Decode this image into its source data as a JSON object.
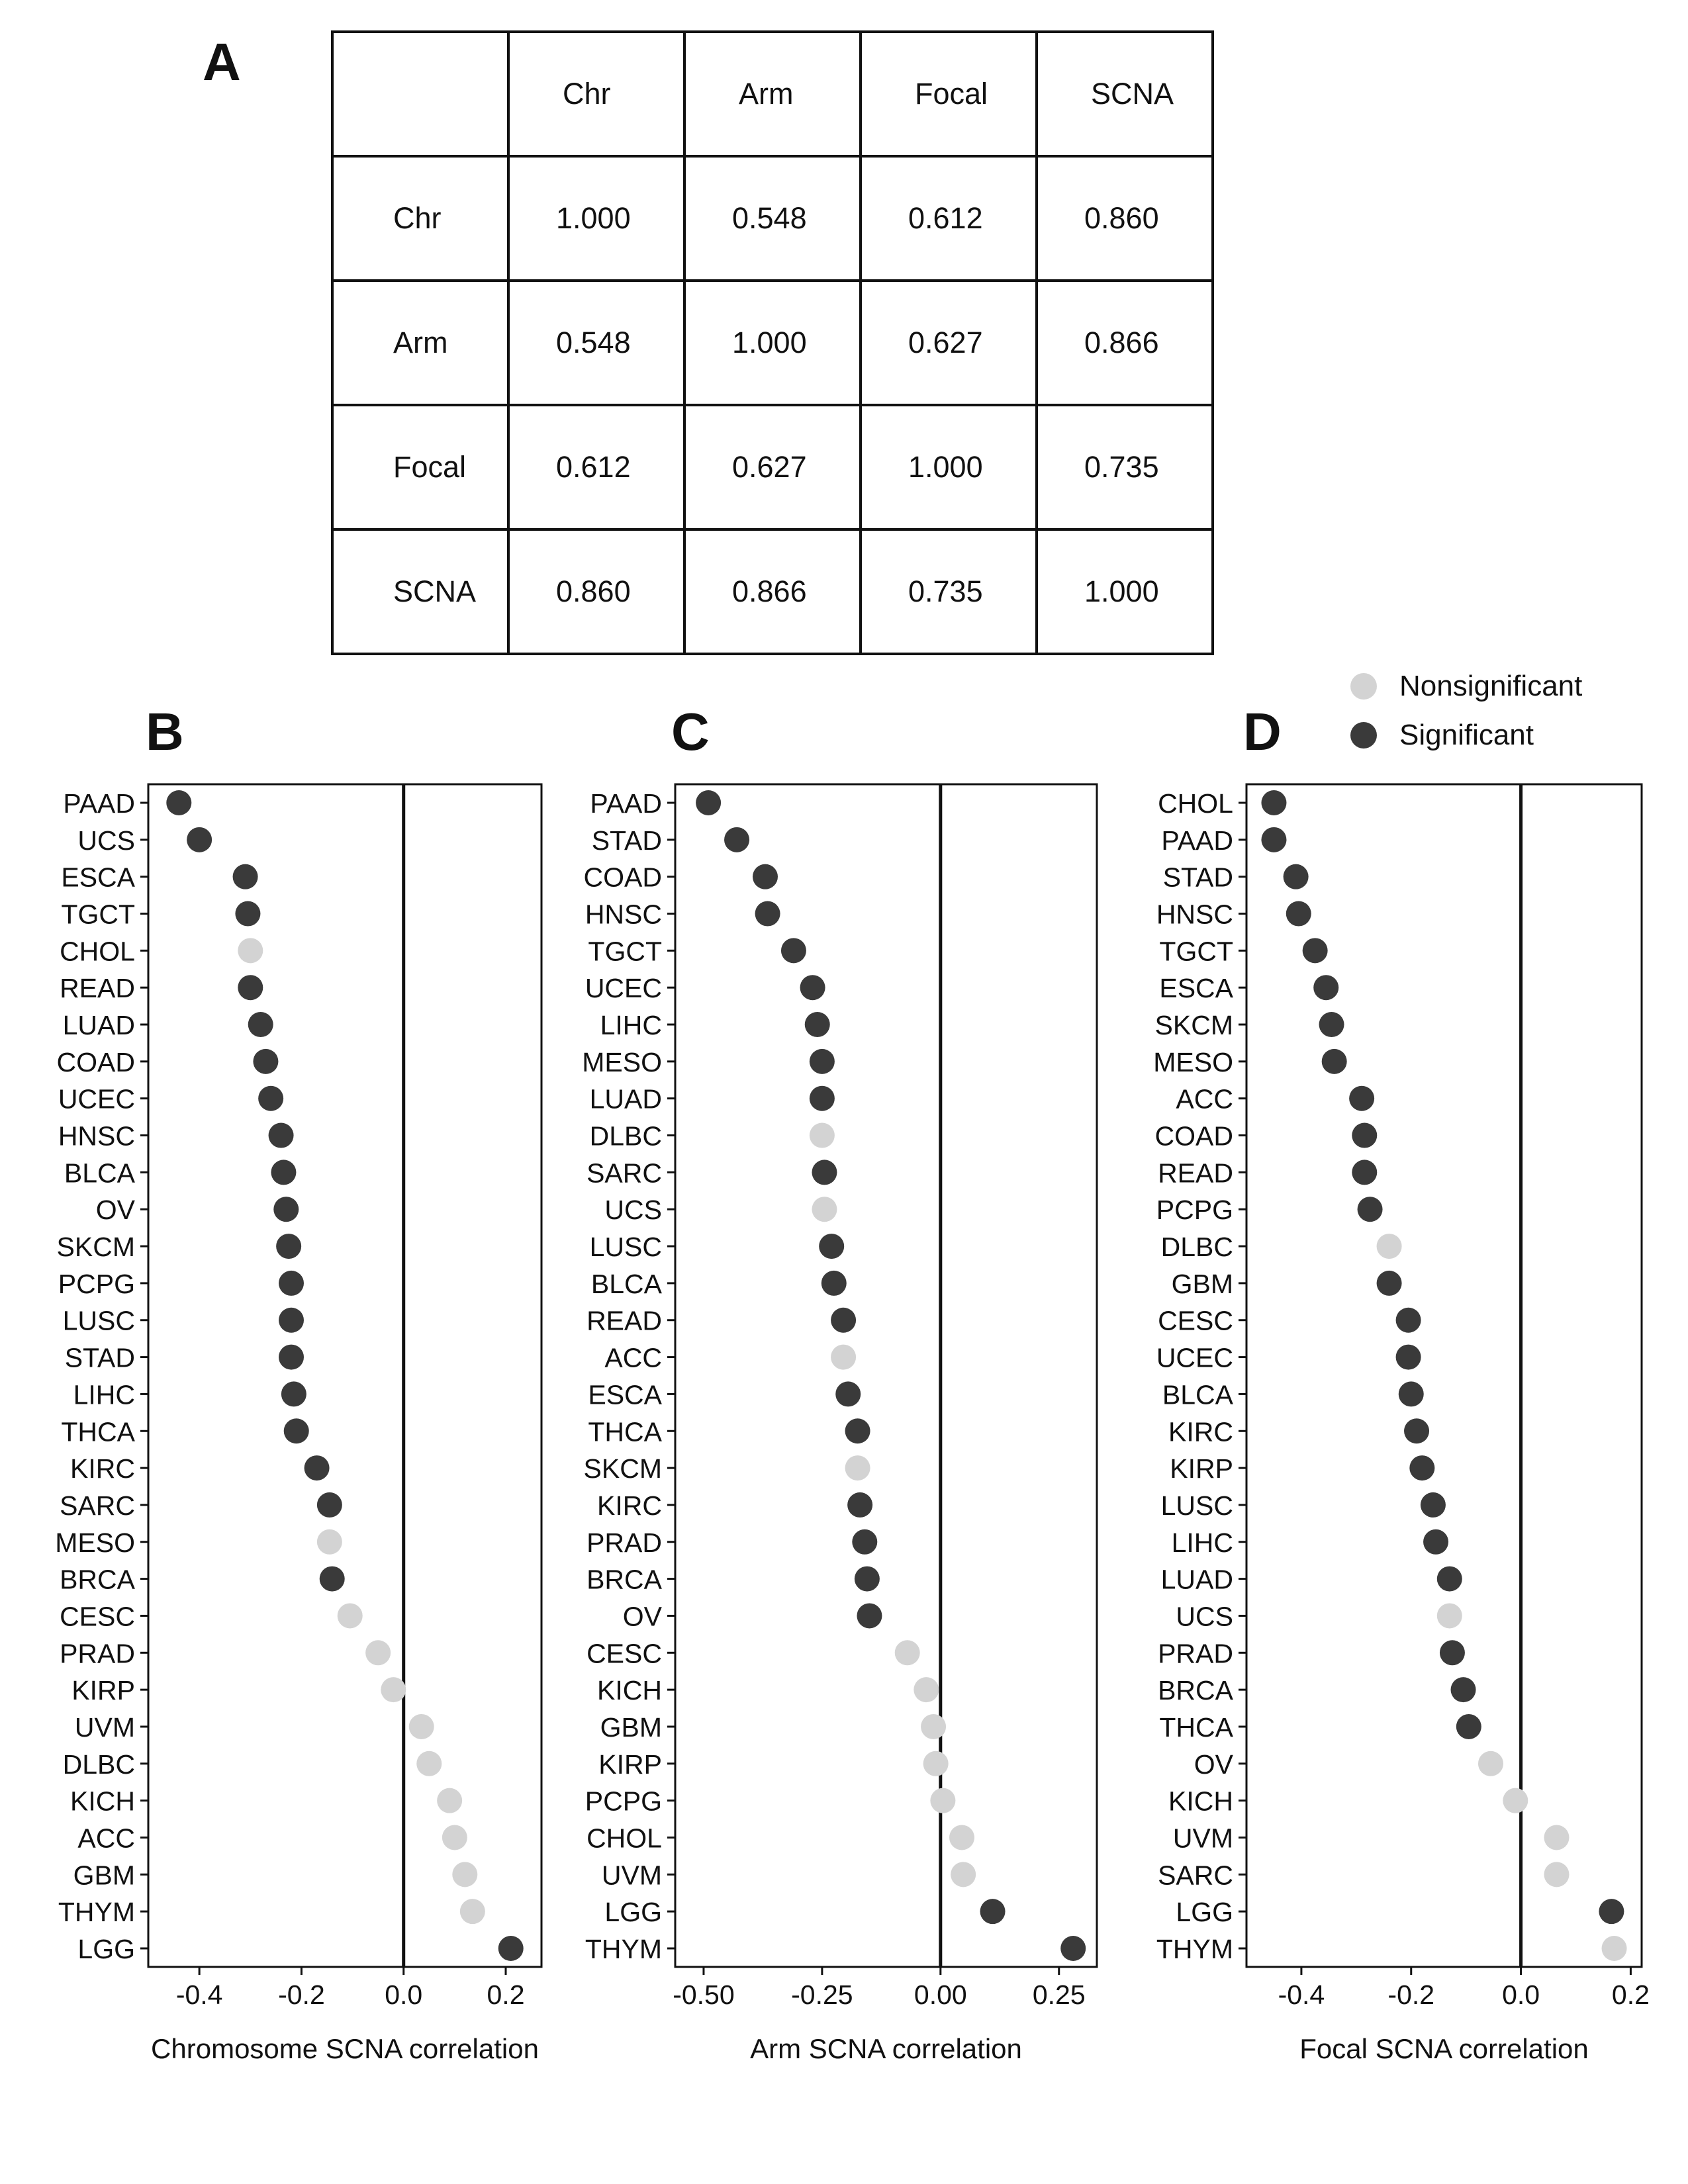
{
  "panels": {
    "a": "A",
    "b": "B",
    "c": "C",
    "d": "D"
  },
  "table": {
    "header": [
      "",
      "Chr",
      "Arm",
      "Focal",
      "SCNA"
    ],
    "rows": [
      [
        "Chr",
        "1.000",
        "0.548",
        "0.612",
        "0.860"
      ],
      [
        "Arm",
        "0.548",
        "1.000",
        "0.627",
        "0.866"
      ],
      [
        "Focal",
        "0.612",
        "0.627",
        "1.000",
        "0.735"
      ],
      [
        "SCNA",
        "0.860",
        "0.866",
        "0.735",
        "1.000"
      ]
    ]
  },
  "legend": {
    "nonsignificant": "Nonsignificant",
    "significant": "Significant"
  },
  "colors": {
    "nonsignificant": "#d3d3d3",
    "significant": "#3a3a3a",
    "axis": "#111111"
  },
  "chart_data": [
    {
      "type": "scatter",
      "panel": "B",
      "xlabel": "Chromosome SCNA correlation",
      "xlim": [
        -0.5,
        0.27
      ],
      "xticks": [
        -0.4,
        -0.2,
        0.0,
        0.2
      ],
      "xtick_labels": [
        "-0.4",
        "-0.2",
        "0.0",
        "0.2"
      ],
      "vline": 0,
      "points": [
        {
          "label": "PAAD",
          "x": -0.44,
          "sig": true
        },
        {
          "label": "UCS",
          "x": -0.4,
          "sig": true
        },
        {
          "label": "ESCA",
          "x": -0.31,
          "sig": true
        },
        {
          "label": "TGCT",
          "x": -0.305,
          "sig": true
        },
        {
          "label": "CHOL",
          "x": -0.3,
          "sig": false
        },
        {
          "label": "READ",
          "x": -0.3,
          "sig": true
        },
        {
          "label": "LUAD",
          "x": -0.28,
          "sig": true
        },
        {
          "label": "COAD",
          "x": -0.27,
          "sig": true
        },
        {
          "label": "UCEC",
          "x": -0.26,
          "sig": true
        },
        {
          "label": "HNSC",
          "x": -0.24,
          "sig": true
        },
        {
          "label": "BLCA",
          "x": -0.235,
          "sig": true
        },
        {
          "label": "OV",
          "x": -0.23,
          "sig": true
        },
        {
          "label": "SKCM",
          "x": -0.225,
          "sig": true
        },
        {
          "label": "PCPG",
          "x": -0.22,
          "sig": true
        },
        {
          "label": "LUSC",
          "x": -0.22,
          "sig": true
        },
        {
          "label": "STAD",
          "x": -0.22,
          "sig": true
        },
        {
          "label": "LIHC",
          "x": -0.215,
          "sig": true
        },
        {
          "label": "THCA",
          "x": -0.21,
          "sig": true
        },
        {
          "label": "KIRC",
          "x": -0.17,
          "sig": true
        },
        {
          "label": "SARC",
          "x": -0.145,
          "sig": true
        },
        {
          "label": "MESO",
          "x": -0.145,
          "sig": false
        },
        {
          "label": "BRCA",
          "x": -0.14,
          "sig": true
        },
        {
          "label": "CESC",
          "x": -0.105,
          "sig": false
        },
        {
          "label": "PRAD",
          "x": -0.05,
          "sig": false
        },
        {
          "label": "KIRP",
          "x": -0.02,
          "sig": false
        },
        {
          "label": "UVM",
          "x": 0.035,
          "sig": false
        },
        {
          "label": "DLBC",
          "x": 0.05,
          "sig": false
        },
        {
          "label": "KICH",
          "x": 0.09,
          "sig": false
        },
        {
          "label": "ACC",
          "x": 0.1,
          "sig": false
        },
        {
          "label": "GBM",
          "x": 0.12,
          "sig": false
        },
        {
          "label": "THYM",
          "x": 0.135,
          "sig": false
        },
        {
          "label": "LGG",
          "x": 0.21,
          "sig": true
        }
      ]
    },
    {
      "type": "scatter",
      "panel": "C",
      "xlabel": "Arm SCNA correlation",
      "xlim": [
        -0.56,
        0.33
      ],
      "xticks": [
        -0.5,
        -0.25,
        0.0,
        0.25
      ],
      "xtick_labels": [
        "-0.50",
        "-0.25",
        "0.00",
        "0.25"
      ],
      "vline": 0,
      "points": [
        {
          "label": "PAAD",
          "x": -0.49,
          "sig": true
        },
        {
          "label": "STAD",
          "x": -0.43,
          "sig": true
        },
        {
          "label": "COAD",
          "x": -0.37,
          "sig": true
        },
        {
          "label": "HNSC",
          "x": -0.365,
          "sig": true
        },
        {
          "label": "TGCT",
          "x": -0.31,
          "sig": true
        },
        {
          "label": "UCEC",
          "x": -0.27,
          "sig": true
        },
        {
          "label": "LIHC",
          "x": -0.26,
          "sig": true
        },
        {
          "label": "MESO",
          "x": -0.25,
          "sig": true
        },
        {
          "label": "LUAD",
          "x": -0.25,
          "sig": true
        },
        {
          "label": "DLBC",
          "x": -0.25,
          "sig": false
        },
        {
          "label": "SARC",
          "x": -0.245,
          "sig": true
        },
        {
          "label": "UCS",
          "x": -0.245,
          "sig": false
        },
        {
          "label": "LUSC",
          "x": -0.23,
          "sig": true
        },
        {
          "label": "BLCA",
          "x": -0.225,
          "sig": true
        },
        {
          "label": "READ",
          "x": -0.205,
          "sig": true
        },
        {
          "label": "ACC",
          "x": -0.205,
          "sig": false
        },
        {
          "label": "ESCA",
          "x": -0.195,
          "sig": true
        },
        {
          "label": "THCA",
          "x": -0.175,
          "sig": true
        },
        {
          "label": "SKCM",
          "x": -0.175,
          "sig": false
        },
        {
          "label": "KIRC",
          "x": -0.17,
          "sig": true
        },
        {
          "label": "PRAD",
          "x": -0.16,
          "sig": true
        },
        {
          "label": "BRCA",
          "x": -0.155,
          "sig": true
        },
        {
          "label": "OV",
          "x": -0.15,
          "sig": true
        },
        {
          "label": "CESC",
          "x": -0.07,
          "sig": false
        },
        {
          "label": "KICH",
          "x": -0.03,
          "sig": false
        },
        {
          "label": "GBM",
          "x": -0.015,
          "sig": false
        },
        {
          "label": "KIRP",
          "x": -0.01,
          "sig": false
        },
        {
          "label": "PCPG",
          "x": 0.005,
          "sig": false
        },
        {
          "label": "CHOL",
          "x": 0.045,
          "sig": false
        },
        {
          "label": "UVM",
          "x": 0.048,
          "sig": false
        },
        {
          "label": "LGG",
          "x": 0.11,
          "sig": true
        },
        {
          "label": "THYM",
          "x": 0.28,
          "sig": true
        }
      ]
    },
    {
      "type": "scatter",
      "panel": "D",
      "xlabel": "Focal SCNA correlation",
      "xlim": [
        -0.5,
        0.22
      ],
      "xticks": [
        -0.4,
        -0.2,
        0.0,
        0.2
      ],
      "xtick_labels": [
        "-0.4",
        "-0.2",
        "0.0",
        "0.2"
      ],
      "vline": 0,
      "points": [
        {
          "label": "CHOL",
          "x": -0.45,
          "sig": true
        },
        {
          "label": "PAAD",
          "x": -0.45,
          "sig": true
        },
        {
          "label": "STAD",
          "x": -0.41,
          "sig": true
        },
        {
          "label": "HNSC",
          "x": -0.405,
          "sig": true
        },
        {
          "label": "TGCT",
          "x": -0.375,
          "sig": true
        },
        {
          "label": "ESCA",
          "x": -0.355,
          "sig": true
        },
        {
          "label": "SKCM",
          "x": -0.345,
          "sig": true
        },
        {
          "label": "MESO",
          "x": -0.34,
          "sig": true
        },
        {
          "label": "ACC",
          "x": -0.29,
          "sig": true
        },
        {
          "label": "COAD",
          "x": -0.285,
          "sig": true
        },
        {
          "label": "READ",
          "x": -0.285,
          "sig": true
        },
        {
          "label": "PCPG",
          "x": -0.275,
          "sig": true
        },
        {
          "label": "DLBC",
          "x": -0.24,
          "sig": false
        },
        {
          "label": "GBM",
          "x": -0.24,
          "sig": true
        },
        {
          "label": "CESC",
          "x": -0.205,
          "sig": true
        },
        {
          "label": "UCEC",
          "x": -0.205,
          "sig": true
        },
        {
          "label": "BLCA",
          "x": -0.2,
          "sig": true
        },
        {
          "label": "KIRC",
          "x": -0.19,
          "sig": true
        },
        {
          "label": "KIRP",
          "x": -0.18,
          "sig": true
        },
        {
          "label": "LUSC",
          "x": -0.16,
          "sig": true
        },
        {
          "label": "LIHC",
          "x": -0.155,
          "sig": true
        },
        {
          "label": "LUAD",
          "x": -0.13,
          "sig": true
        },
        {
          "label": "UCS",
          "x": -0.13,
          "sig": false
        },
        {
          "label": "PRAD",
          "x": -0.125,
          "sig": true
        },
        {
          "label": "BRCA",
          "x": -0.105,
          "sig": true
        },
        {
          "label": "THCA",
          "x": -0.095,
          "sig": true
        },
        {
          "label": "OV",
          "x": -0.055,
          "sig": false
        },
        {
          "label": "KICH",
          "x": -0.01,
          "sig": false
        },
        {
          "label": "UVM",
          "x": 0.065,
          "sig": false
        },
        {
          "label": "SARC",
          "x": 0.065,
          "sig": false
        },
        {
          "label": "LGG",
          "x": 0.165,
          "sig": true
        },
        {
          "label": "THYM",
          "x": 0.17,
          "sig": false
        }
      ]
    }
  ]
}
